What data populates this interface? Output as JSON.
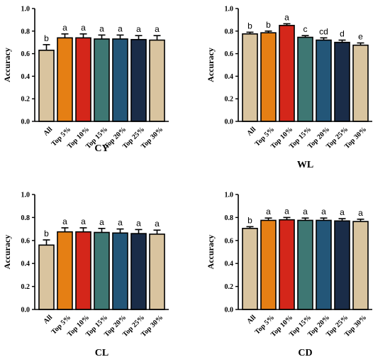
{
  "chart_data": [
    {
      "type": "bar",
      "title": "CY",
      "ylabel": "Accuracy",
      "xlabel": "",
      "ylim": [
        0,
        1.0
      ],
      "yticks": [
        "0.0",
        "0.2",
        "0.4",
        "0.6",
        "0.8",
        "1.0"
      ],
      "categories": [
        "All",
        "Top 5%",
        "Top 10%",
        "Top 15%",
        "Top 20%",
        "Top 25%",
        "Top 30%"
      ],
      "values": [
        0.63,
        0.74,
        0.74,
        0.73,
        0.73,
        0.725,
        0.72
      ],
      "errors": [
        0.05,
        0.035,
        0.035,
        0.035,
        0.035,
        0.035,
        0.04
      ],
      "labels": [
        "b",
        "a",
        "a",
        "a",
        "a",
        "a",
        "a"
      ],
      "colors": [
        "#d9c49f",
        "#e57f14",
        "#d4261a",
        "#3e7773",
        "#235678",
        "#1a2c48",
        "#d9c49f"
      ]
    },
    {
      "type": "bar",
      "title": "WL",
      "ylabel": "Accuracy",
      "xlabel": "",
      "ylim": [
        0,
        1.0
      ],
      "yticks": [
        "0.0",
        "0.2",
        "0.4",
        "0.6",
        "0.8",
        "1.0"
      ],
      "categories": [
        "All",
        "Top 5%",
        "Top 10%",
        "Top 15%",
        "Top 20%",
        "Top 25%",
        "Top 30%"
      ],
      "values": [
        0.775,
        0.785,
        0.85,
        0.745,
        0.72,
        0.7,
        0.675
      ],
      "errors": [
        0.015,
        0.015,
        0.015,
        0.015,
        0.02,
        0.02,
        0.02
      ],
      "labels": [
        "b",
        "b",
        "a",
        "c",
        "cd",
        "d",
        "e"
      ],
      "colors": [
        "#d9c49f",
        "#e57f14",
        "#d4261a",
        "#3e7773",
        "#235678",
        "#1a2c48",
        "#d9c49f"
      ]
    },
    {
      "type": "bar",
      "title": "CL",
      "ylabel": "Accuracy",
      "xlabel": "",
      "ylim": [
        0,
        1.0
      ],
      "yticks": [
        "0.0",
        "0.2",
        "0.4",
        "0.6",
        "0.8",
        "1.0"
      ],
      "categories": [
        "All",
        "Top 5%",
        "Top 10%",
        "Top 15%",
        "Top 20%",
        "Top 25%",
        "Top 30%"
      ],
      "values": [
        0.56,
        0.675,
        0.675,
        0.67,
        0.665,
        0.66,
        0.655
      ],
      "errors": [
        0.045,
        0.035,
        0.035,
        0.035,
        0.035,
        0.035,
        0.035
      ],
      "labels": [
        "b",
        "a",
        "a",
        "a",
        "a",
        "a",
        "a"
      ],
      "colors": [
        "#d9c49f",
        "#e57f14",
        "#d4261a",
        "#3e7773",
        "#235678",
        "#1a2c48",
        "#d9c49f"
      ]
    },
    {
      "type": "bar",
      "title": "CD",
      "ylabel": "Accuracy",
      "xlabel": "",
      "ylim": [
        0,
        1.0
      ],
      "yticks": [
        "0.0",
        "0.2",
        "0.4",
        "0.6",
        "0.8",
        "1.0"
      ],
      "categories": [
        "All",
        "Top 5%",
        "Top 10%",
        "Top 15%",
        "Top 20%",
        "Top 25%",
        "Top 30%"
      ],
      "values": [
        0.705,
        0.775,
        0.78,
        0.775,
        0.775,
        0.77,
        0.765
      ],
      "errors": [
        0.015,
        0.02,
        0.02,
        0.02,
        0.02,
        0.02,
        0.02
      ],
      "labels": [
        "b",
        "a",
        "a",
        "a",
        "a",
        "a",
        "a"
      ],
      "colors": [
        "#d9c49f",
        "#e57f14",
        "#d4261a",
        "#3e7773",
        "#235678",
        "#1a2c48",
        "#d9c49f"
      ]
    }
  ]
}
